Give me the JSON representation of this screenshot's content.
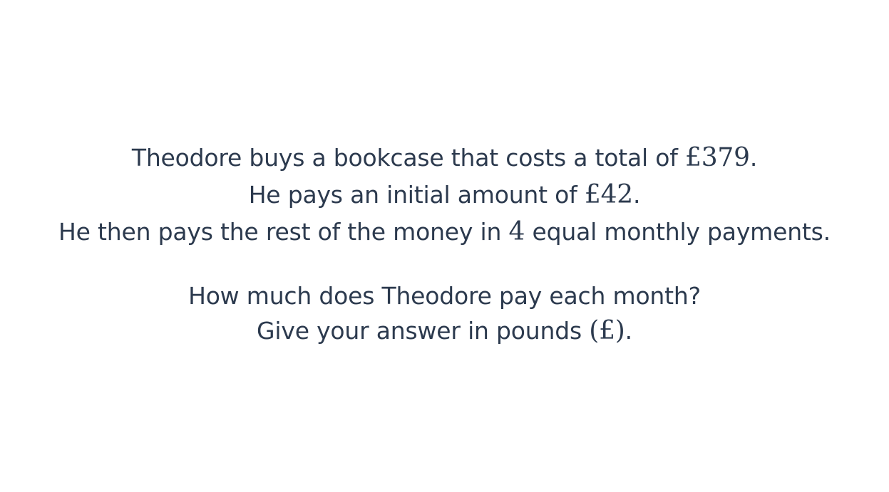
{
  "question": {
    "line1": {
      "before": "Theodore buys a bookcase that costs a total of",
      "math": "£379",
      "after": "."
    },
    "line2": {
      "before": "He pays an initial amount of",
      "math": "£42",
      "after": "."
    },
    "line3": {
      "before": "He then pays the rest of the money in",
      "math": "4",
      "after": "equal monthly payments."
    },
    "line4": {
      "text": "How much does Theodore pay each month?"
    },
    "line5": {
      "before": "Give your answer in pounds",
      "math": "(£)",
      "after": "."
    }
  }
}
